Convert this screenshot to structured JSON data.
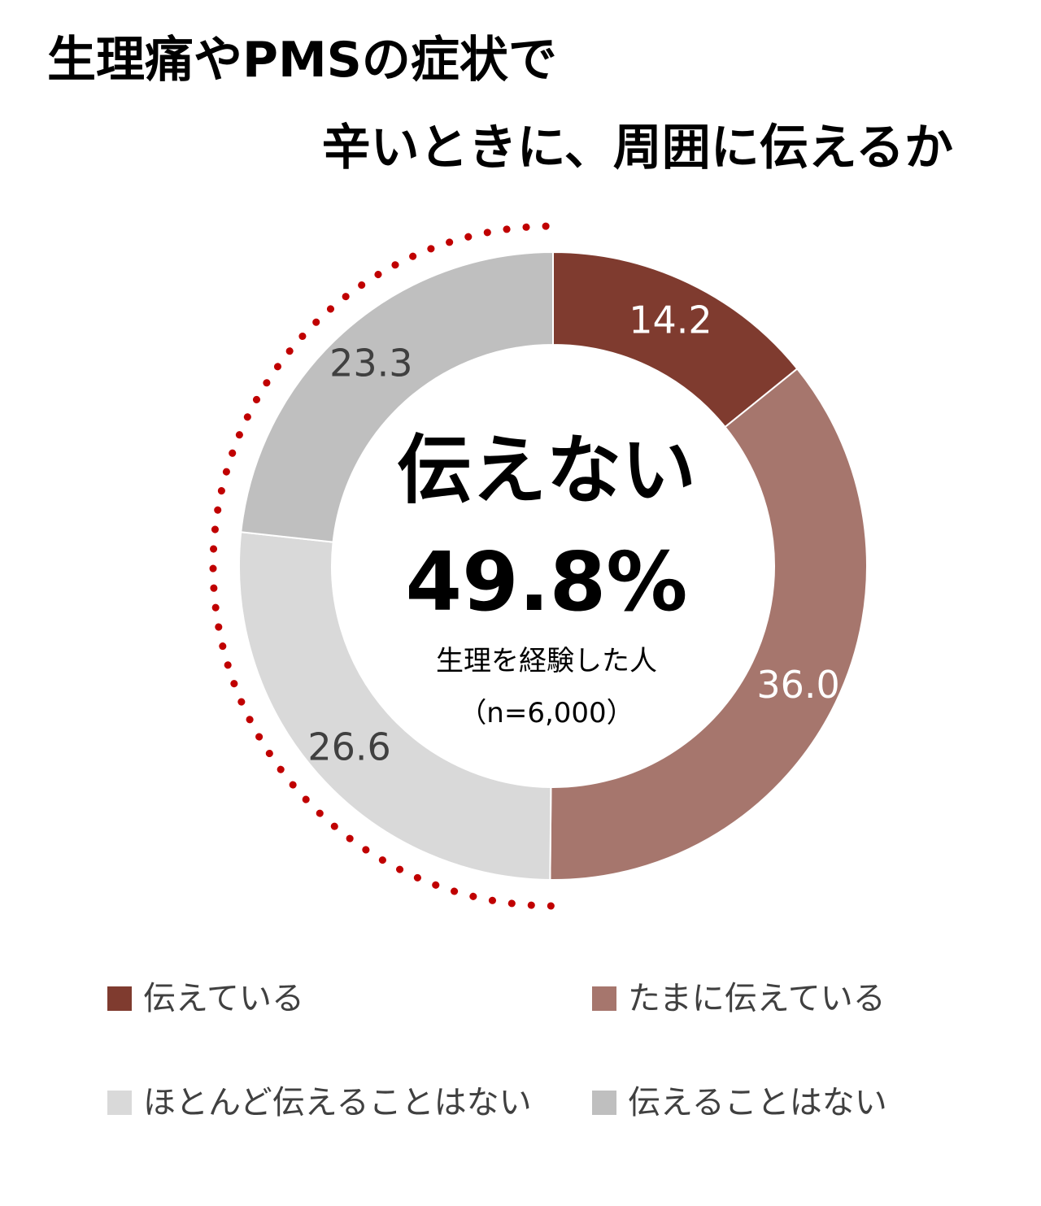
{
  "title": {
    "line1": "生理痛やPMSの症状で",
    "line2": "辛いときに、周囲に伝えるか"
  },
  "center": {
    "heading": "伝えない",
    "value": "49.8%",
    "base_label": "生理を経験した人",
    "sample": "（n=6,000）"
  },
  "chart_data": {
    "type": "donut",
    "title": "生理痛やPMSの症状で辛いときに、周囲に伝えるか",
    "unit": "%",
    "categories": [
      "伝えている",
      "たまに伝えている",
      "ほとんど伝えることはない",
      "伝えることはない"
    ],
    "values": [
      14.2,
      36.0,
      26.6,
      23.3
    ],
    "labels": [
      "14.2",
      "36.0",
      "26.6",
      "23.3"
    ],
    "colors": [
      "#7f3b2f",
      "#a6766d",
      "#d9d9d9",
      "#bfbfbf"
    ],
    "label_colors": [
      "#ffffff",
      "#ffffff",
      "#404040",
      "#404040"
    ],
    "start": "12 o'clock",
    "direction": "clockwise",
    "highlight": {
      "label": "伝えない",
      "value": 49.8,
      "categories": [
        "ほとんど伝えることはない",
        "伝えることはない"
      ],
      "style": "dotted arc",
      "color": "#c00000"
    },
    "legend": {
      "position": "bottom",
      "items": [
        {
          "label": "伝えている",
          "color": "#7f3b2f"
        },
        {
          "label": "たまに伝えている",
          "color": "#a6766d"
        },
        {
          "label": "ほとんど伝えることはない",
          "color": "#d9d9d9"
        },
        {
          "label": "伝えることはない",
          "color": "#bfbfbf"
        }
      ]
    }
  }
}
